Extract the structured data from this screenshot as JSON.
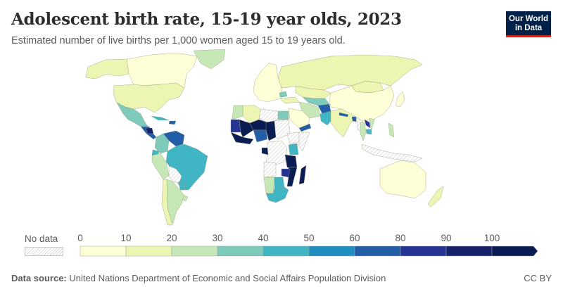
{
  "header": {
    "title": "Adolescent birth rate, 15-19 year olds, 2023",
    "subtitle": "Estimated number of live births per 1,000 women aged 15 to 19 years old."
  },
  "logo": {
    "line1": "Our World",
    "line2": "in Data",
    "bg_color": "#002147",
    "accent_color": "#ce261e"
  },
  "legend": {
    "no_data_label": "No data",
    "bins": [
      {
        "from": 0,
        "to": 10,
        "color": "#fefed7"
      },
      {
        "from": 10,
        "to": 20,
        "color": "#ecf5b1"
      },
      {
        "from": 20,
        "to": 30,
        "color": "#c6e8b6"
      },
      {
        "from": 30,
        "to": 40,
        "color": "#7ecbbb"
      },
      {
        "from": 40,
        "to": 50,
        "color": "#40b6c4"
      },
      {
        "from": 50,
        "to": 60,
        "color": "#1e90c0"
      },
      {
        "from": 60,
        "to": 80,
        "color": "#225ea7"
      },
      {
        "from": 80,
        "to": 90,
        "color": "#263493"
      },
      {
        "from": 90,
        "to": 100,
        "color": "#16236c"
      },
      {
        "from": 100,
        "to": null,
        "color": "#0a1c52"
      }
    ],
    "tick_labels": [
      "0",
      "10",
      "20",
      "30",
      "40",
      "50",
      "60",
      "80",
      "90",
      "100"
    ]
  },
  "chart_data": {
    "type": "choropleth",
    "title": "Adolescent birth rate, 15-19 year olds, 2023",
    "subtitle": "Estimated number of live births per 1,000 women aged 15 to 19 years old.",
    "unit": "live births per 1,000 women aged 15-19",
    "year": 2023,
    "legend_placement": "bottom",
    "regions": [
      {
        "name": "Canada",
        "bin": "0-10"
      },
      {
        "name": "Alaska (USA)",
        "bin": "10-20"
      },
      {
        "name": "United States",
        "bin": "10-20"
      },
      {
        "name": "Greenland",
        "bin": "20-30"
      },
      {
        "name": "Mexico",
        "bin": "30-40"
      },
      {
        "name": "Central America",
        "bin": "60-80"
      },
      {
        "name": "Nicaragua",
        "bin": "90-100"
      },
      {
        "name": "Cuba",
        "bin": "40-50"
      },
      {
        "name": "Dominican Republic",
        "bin": "60-80"
      },
      {
        "name": "Venezuela",
        "bin": "60-80"
      },
      {
        "name": "Colombia",
        "bin": "30-40"
      },
      {
        "name": "Ecuador",
        "bin": "40-50"
      },
      {
        "name": "Peru",
        "bin": "20-30"
      },
      {
        "name": "Brazil",
        "bin": "40-50"
      },
      {
        "name": "Bolivia",
        "bin": "no data"
      },
      {
        "name": "Paraguay",
        "bin": "40-50"
      },
      {
        "name": "Argentina",
        "bin": "20-30"
      },
      {
        "name": "Chile",
        "bin": "10-20"
      },
      {
        "name": "Uruguay",
        "bin": "20-30"
      },
      {
        "name": "Western Europe",
        "bin": "0-10"
      },
      {
        "name": "Romania",
        "bin": "30-40"
      },
      {
        "name": "Russia",
        "bin": "10-20"
      },
      {
        "name": "Kazakhstan",
        "bin": "10-20"
      },
      {
        "name": "Central Asia",
        "bin": "30-40"
      },
      {
        "name": "Turkey",
        "bin": "10-20"
      },
      {
        "name": "Iran",
        "bin": "20-30"
      },
      {
        "name": "Afghanistan",
        "bin": "60-80"
      },
      {
        "name": "Pakistan",
        "bin": "40-50"
      },
      {
        "name": "India",
        "bin": "10-20"
      },
      {
        "name": "Nepal",
        "bin": "60-80"
      },
      {
        "name": "Bangladesh",
        "bin": "60-80"
      },
      {
        "name": "China",
        "bin": "0-10"
      },
      {
        "name": "Mongolia",
        "bin": "10-20"
      },
      {
        "name": "Myanmar",
        "bin": "no data"
      },
      {
        "name": "Laos",
        "bin": "80-90"
      },
      {
        "name": "Cambodia",
        "bin": "40-50"
      },
      {
        "name": "Thailand",
        "bin": "20-30"
      },
      {
        "name": "Vietnam",
        "bin": "20-30"
      },
      {
        "name": "Philippines",
        "bin": "20-30"
      },
      {
        "name": "Indonesia",
        "bin": "no data"
      },
      {
        "name": "Australia",
        "bin": "0-10"
      },
      {
        "name": "New Zealand",
        "bin": "10-20"
      },
      {
        "name": "Japan",
        "bin": "0-10"
      },
      {
        "name": "Saudi Arabia",
        "bin": "0-10"
      },
      {
        "name": "Yemen",
        "bin": "60-80"
      },
      {
        "name": "Egypt",
        "bin": "30-40"
      },
      {
        "name": "Libya",
        "bin": "no data"
      },
      {
        "name": "Algeria",
        "bin": "10-20"
      },
      {
        "name": "Morocco",
        "bin": "20-30"
      },
      {
        "name": "Mauritania",
        "bin": "80-90"
      },
      {
        "name": "Mali",
        "bin": "100+"
      },
      {
        "name": "Niger",
        "bin": "100+"
      },
      {
        "name": "Chad",
        "bin": "100+"
      },
      {
        "name": "Nigeria",
        "bin": "60-80"
      },
      {
        "name": "Sudan",
        "bin": "no data"
      },
      {
        "name": "Ethiopia",
        "bin": "no data"
      },
      {
        "name": "Somalia",
        "bin": "no data"
      },
      {
        "name": "Kenya",
        "bin": "40-50"
      },
      {
        "name": "DR Congo",
        "bin": "no data"
      },
      {
        "name": "Gabon / Equatorial Guinea",
        "bin": "100+"
      },
      {
        "name": "Tanzania",
        "bin": "100+"
      },
      {
        "name": "Mozambique",
        "bin": "100+"
      },
      {
        "name": "Malawi / Zambia",
        "bin": "80-90"
      },
      {
        "name": "Madagascar",
        "bin": "100+"
      },
      {
        "name": "Angola",
        "bin": "no data"
      },
      {
        "name": "Namibia",
        "bin": "20-30"
      },
      {
        "name": "Botswana",
        "bin": "40-50"
      },
      {
        "name": "South Africa",
        "bin": "40-50"
      }
    ]
  },
  "footer": {
    "source_label": "Data source:",
    "source_text": "United Nations Department of Economic and Social Affairs Population Division",
    "license": "CC BY"
  }
}
